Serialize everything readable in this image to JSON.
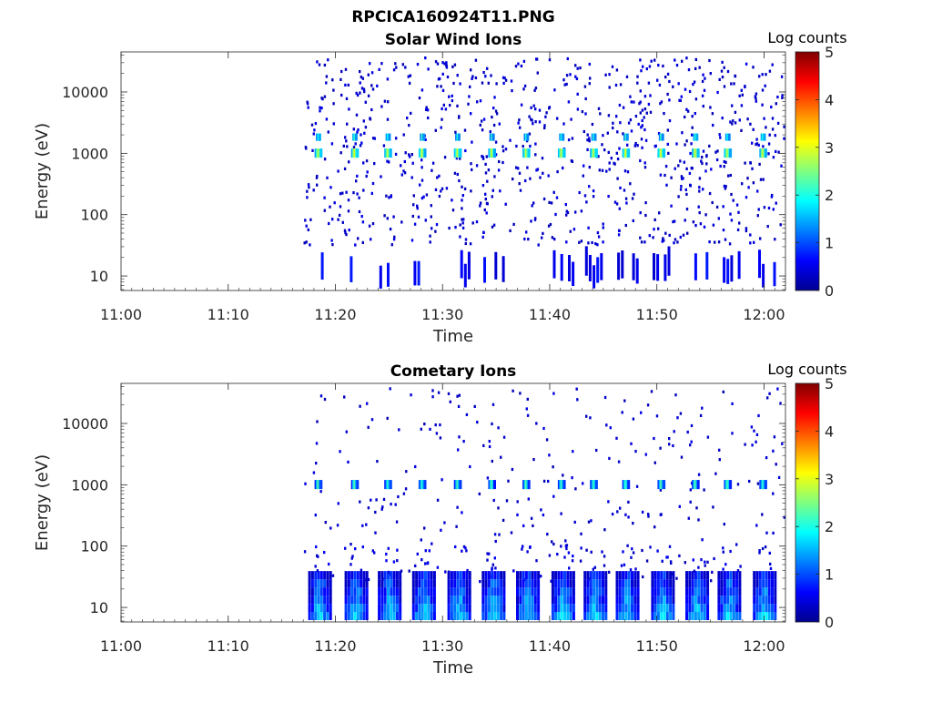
{
  "figure": {
    "title": "RPCICA160924T11.PNG",
    "background": "#ffffff",
    "text_color": "#262626"
  },
  "chart_data": [
    {
      "type": "heatmap",
      "title": "Solar Wind Ions",
      "xlabel": "Time",
      "ylabel": "Energy (eV)",
      "y_scale": "log",
      "ylim": [
        5.8,
        45000
      ],
      "xlim": [
        "11:00",
        "12:02"
      ],
      "x_ticks": [
        "11:00",
        "11:10",
        "11:20",
        "11:30",
        "11:40",
        "11:50",
        "12:00"
      ],
      "y_ticks": [
        {
          "value": 10,
          "label": "10"
        },
        {
          "value": 100,
          "label": "100"
        },
        {
          "value": 1000,
          "label": "1000"
        },
        {
          "value": 10000,
          "label": "10000"
        }
      ],
      "colorbar": {
        "label": "Log counts",
        "min": 0,
        "max": 5,
        "ticks": [
          "0",
          "1",
          "2",
          "3",
          "4",
          "5"
        ],
        "colormap": "jet"
      },
      "data_start": "11:17",
      "data_end": "12:02",
      "burst_times": [
        "11:18.3",
        "11:21.7",
        "11:24.8",
        "11:28.0",
        "11:31.3",
        "11:34.5",
        "11:37.7",
        "11:41.0",
        "11:44.0",
        "11:47.0",
        "11:50.3",
        "11:53.5",
        "11:56.5",
        "11:59.8"
      ],
      "peak_energy_ev": 850,
      "secondary_energy_ev": 1600,
      "peak_log_counts": 3.1
    },
    {
      "type": "heatmap",
      "title": "Cometary Ions",
      "xlabel": "Time",
      "ylabel": "Energy (eV)",
      "y_scale": "log",
      "ylim": [
        5.8,
        45000
      ],
      "xlim": [
        "11:00",
        "12:02"
      ],
      "x_ticks": [
        "11:00",
        "11:10",
        "11:20",
        "11:30",
        "11:40",
        "11:50",
        "12:00"
      ],
      "y_ticks": [
        {
          "value": 10,
          "label": "10"
        },
        {
          "value": 100,
          "label": "100"
        },
        {
          "value": 1000,
          "label": "1000"
        },
        {
          "value": 10000,
          "label": "10000"
        }
      ],
      "colorbar": {
        "label": "Log counts",
        "min": 0,
        "max": 5,
        "ticks": [
          "0",
          "1",
          "2",
          "3",
          "4",
          "5"
        ],
        "colormap": "jet"
      },
      "data_start": "11:17",
      "data_end": "12:02",
      "burst_times": [
        "11:18.3",
        "11:21.7",
        "11:24.8",
        "11:28.0",
        "11:31.3",
        "11:34.5",
        "11:37.7",
        "11:41.0",
        "11:44.0",
        "11:47.0",
        "11:50.3",
        "11:53.5",
        "11:56.5",
        "11:59.8"
      ],
      "peak_energy_ev": 850,
      "low_energy_band_ev": [
        6,
        30
      ],
      "peak_log_counts": 2.4
    }
  ]
}
